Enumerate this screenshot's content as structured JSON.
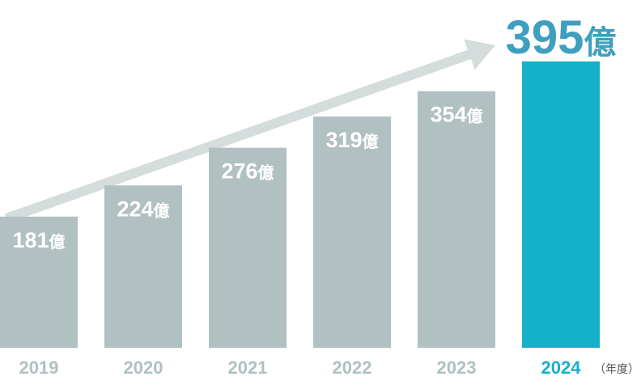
{
  "chart_data": {
    "type": "bar",
    "categories": [
      "2019",
      "2020",
      "2021",
      "2022",
      "2023",
      "2024"
    ],
    "values": [
      181,
      224,
      276,
      319,
      354,
      395
    ],
    "value_labels": [
      "181億",
      "224億",
      "276億",
      "319億",
      "354億",
      "395億"
    ],
    "value_unit": "億",
    "x_unit_label": "（年度）",
    "highlight_index": 5,
    "colors": {
      "bar": "#b1c0c0",
      "highlight_bar": "#14b0cc",
      "highlight_text": "#3e9fc0",
      "tick": "#b1c0c0",
      "highlight_tick": "#14b0cc",
      "arrow": "#d5dcdc"
    },
    "trend_arrow": true,
    "ylim": [
      0,
      395
    ],
    "grid": false
  }
}
